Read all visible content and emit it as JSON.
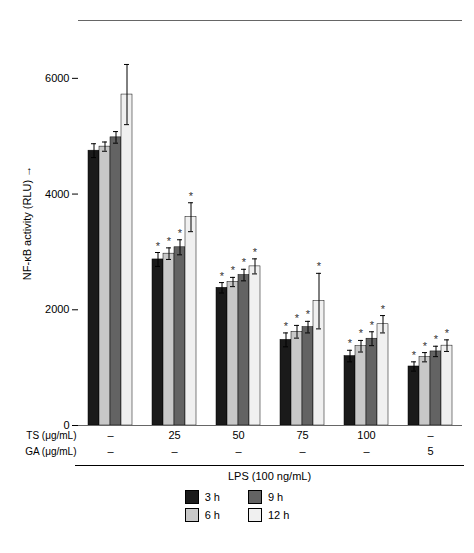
{
  "chart_data": {
    "type": "bar",
    "categories": [
      null,
      null,
      null,
      null,
      null,
      null
    ],
    "series": [
      {
        "name": "3 h",
        "color": "#1a1a1a",
        "values": [
          4750,
          2870,
          2380,
          1480,
          1200,
          1020
        ],
        "errors": [
          120,
          120,
          90,
          120,
          100,
          80
        ]
      },
      {
        "name": "6 h",
        "color": "#c8c8c8",
        "values": [
          4820,
          2970,
          2480,
          1620,
          1370,
          1180
        ],
        "errors": [
          80,
          100,
          80,
          110,
          100,
          80
        ]
      },
      {
        "name": "9 h",
        "color": "#636363",
        "values": [
          4980,
          3080,
          2600,
          1700,
          1500,
          1280
        ],
        "errors": [
          100,
          130,
          100,
          100,
          120,
          90
        ]
      },
      {
        "name": "12 h",
        "color": "#f0f0f0",
        "values": [
          5720,
          3600,
          2750,
          2150,
          1750,
          1380
        ],
        "errors": [
          520,
          250,
          130,
          480,
          150,
          100
        ]
      }
    ],
    "ylabel": "NF-κB activity (RLU)",
    "xlabel": "LPS (100 ng/mL)",
    "ylim": [
      0,
      7000
    ],
    "yticks": [
      0,
      2000,
      4000,
      6000
    ],
    "grid": false,
    "legend": "bottom",
    "tick_labels": "y",
    "annotations": [
      {
        "label": "TS (μg/mL)",
        "values": [
          "–",
          "25",
          "50",
          "75",
          "100",
          "–"
        ]
      },
      {
        "label": "GA (μg/mL)",
        "values": [
          "–",
          "–",
          "–",
          "–",
          "–",
          "5"
        ]
      }
    ],
    "significance": {
      "text": "*",
      "groups": [
        false,
        true,
        true,
        true,
        true,
        true
      ]
    }
  }
}
